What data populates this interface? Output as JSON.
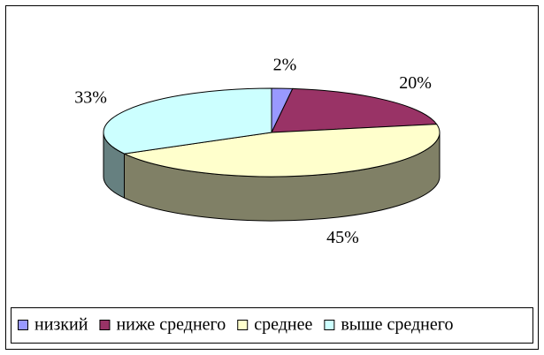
{
  "chart_data": {
    "type": "pie3d",
    "categories": [
      "низкий",
      "ниже среднего",
      "среднее",
      "выше среднего"
    ],
    "values": [
      2,
      20,
      45,
      33
    ],
    "value_labels": [
      "2%",
      "20%",
      "45%",
      "33%"
    ],
    "colors": [
      "#9999ff",
      "#993366",
      "#ffffcc",
      "#ccffff"
    ],
    "legend": "bottom"
  }
}
